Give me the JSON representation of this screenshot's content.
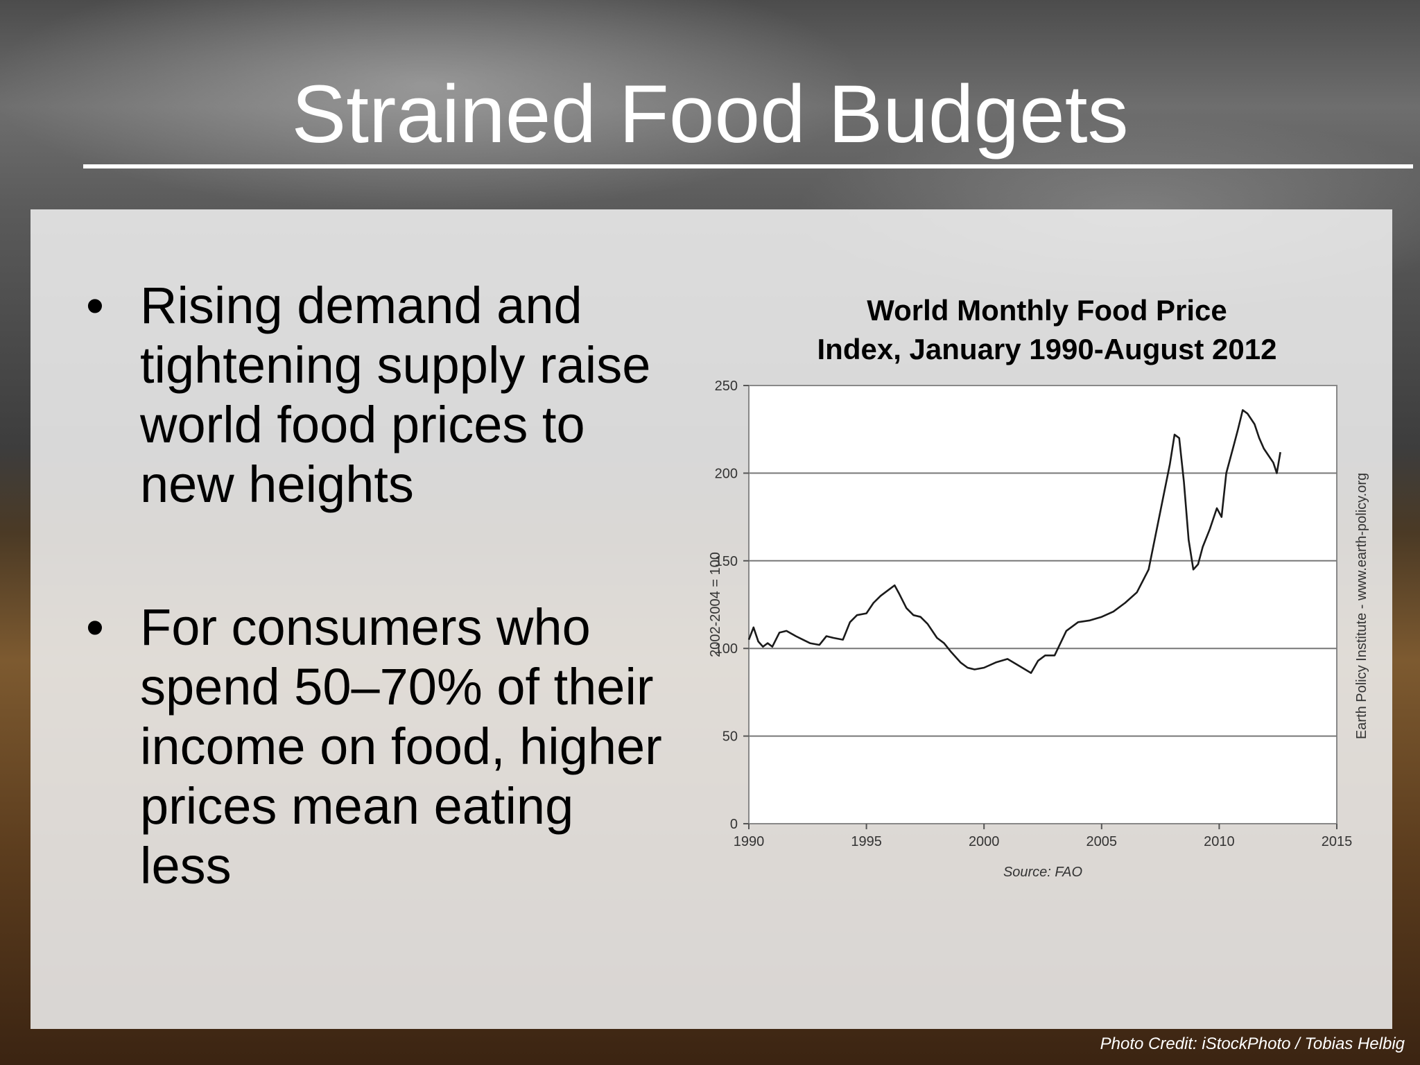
{
  "slide": {
    "title": "Strained Food Budgets",
    "bullets": [
      "Rising demand and tightening supply raise world food prices to new heights",
      "For consumers who spend 50–70% of their income on food, higher prices mean eating less"
    ],
    "bullet_glyph": "•",
    "photo_credit": "Photo Credit: iStockPhoto / Tobias Helbig",
    "colors": {
      "title": "#ffffff",
      "panel": "#eeeeee",
      "line": "#1a1a1a"
    }
  },
  "chart_data": {
    "type": "line",
    "title_lines": [
      "World Monthly Food Price",
      "Index, January 1990-August 2012"
    ],
    "ylabel": "2002-2004 = 100",
    "source": "Source: FAO",
    "side_note": "Earth Policy Institute - www.earth-policy.org",
    "xlim": [
      1990,
      2015
    ],
    "ylim": [
      0,
      250
    ],
    "xticks": [
      "1990",
      "1995",
      "2000",
      "2005",
      "2010",
      "2015"
    ],
    "yticks": [
      "0",
      "50",
      "100",
      "150",
      "200",
      "250"
    ],
    "grid": "horizontal",
    "legend": "none",
    "series": [
      {
        "x": [
          1990.0,
          1990.2,
          1990.4,
          1990.6,
          1990.8,
          1991.0,
          1991.3,
          1991.6,
          1992.0,
          1992.3,
          1992.6,
          1993.0,
          1993.3,
          1993.6,
          1994.0,
          1994.3,
          1994.6,
          1995.0,
          1995.3,
          1995.6,
          1995.9,
          1996.2,
          1996.4,
          1996.7,
          1997.0,
          1997.3,
          1997.6,
          1998.0,
          1998.3,
          1998.6,
          1999.0,
          1999.3,
          1999.6,
          2000.0,
          2000.5,
          2001.0,
          2001.5,
          2002.0,
          2002.3,
          2002.6,
          2003.0,
          2003.5,
          2004.0,
          2004.5,
          2005.0,
          2005.5,
          2006.0,
          2006.5,
          2007.0,
          2007.3,
          2007.6,
          2007.9,
          2008.1,
          2008.3,
          2008.5,
          2008.7,
          2008.9,
          2009.1,
          2009.3,
          2009.6,
          2009.9,
          2010.1,
          2010.3,
          2010.6,
          2010.8,
          2011.0,
          2011.2,
          2011.5,
          2011.7,
          2011.9,
          2012.1,
          2012.3,
          2012.45,
          2012.6
        ],
        "y": [
          105,
          112,
          104,
          101,
          103,
          101,
          109,
          110,
          107,
          105,
          103,
          102,
          107,
          106,
          105,
          115,
          119,
          120,
          126,
          130,
          133,
          136,
          131,
          123,
          119,
          118,
          114,
          106,
          103,
          98,
          92,
          89,
          88,
          89,
          92,
          94,
          90,
          86,
          93,
          96,
          96,
          110,
          115,
          116,
          118,
          121,
          126,
          132,
          145,
          165,
          185,
          205,
          222,
          220,
          195,
          162,
          145,
          148,
          158,
          168,
          180,
          175,
          200,
          215,
          225,
          236,
          234,
          228,
          220,
          214,
          210,
          206,
          200,
          212
        ]
      }
    ]
  }
}
